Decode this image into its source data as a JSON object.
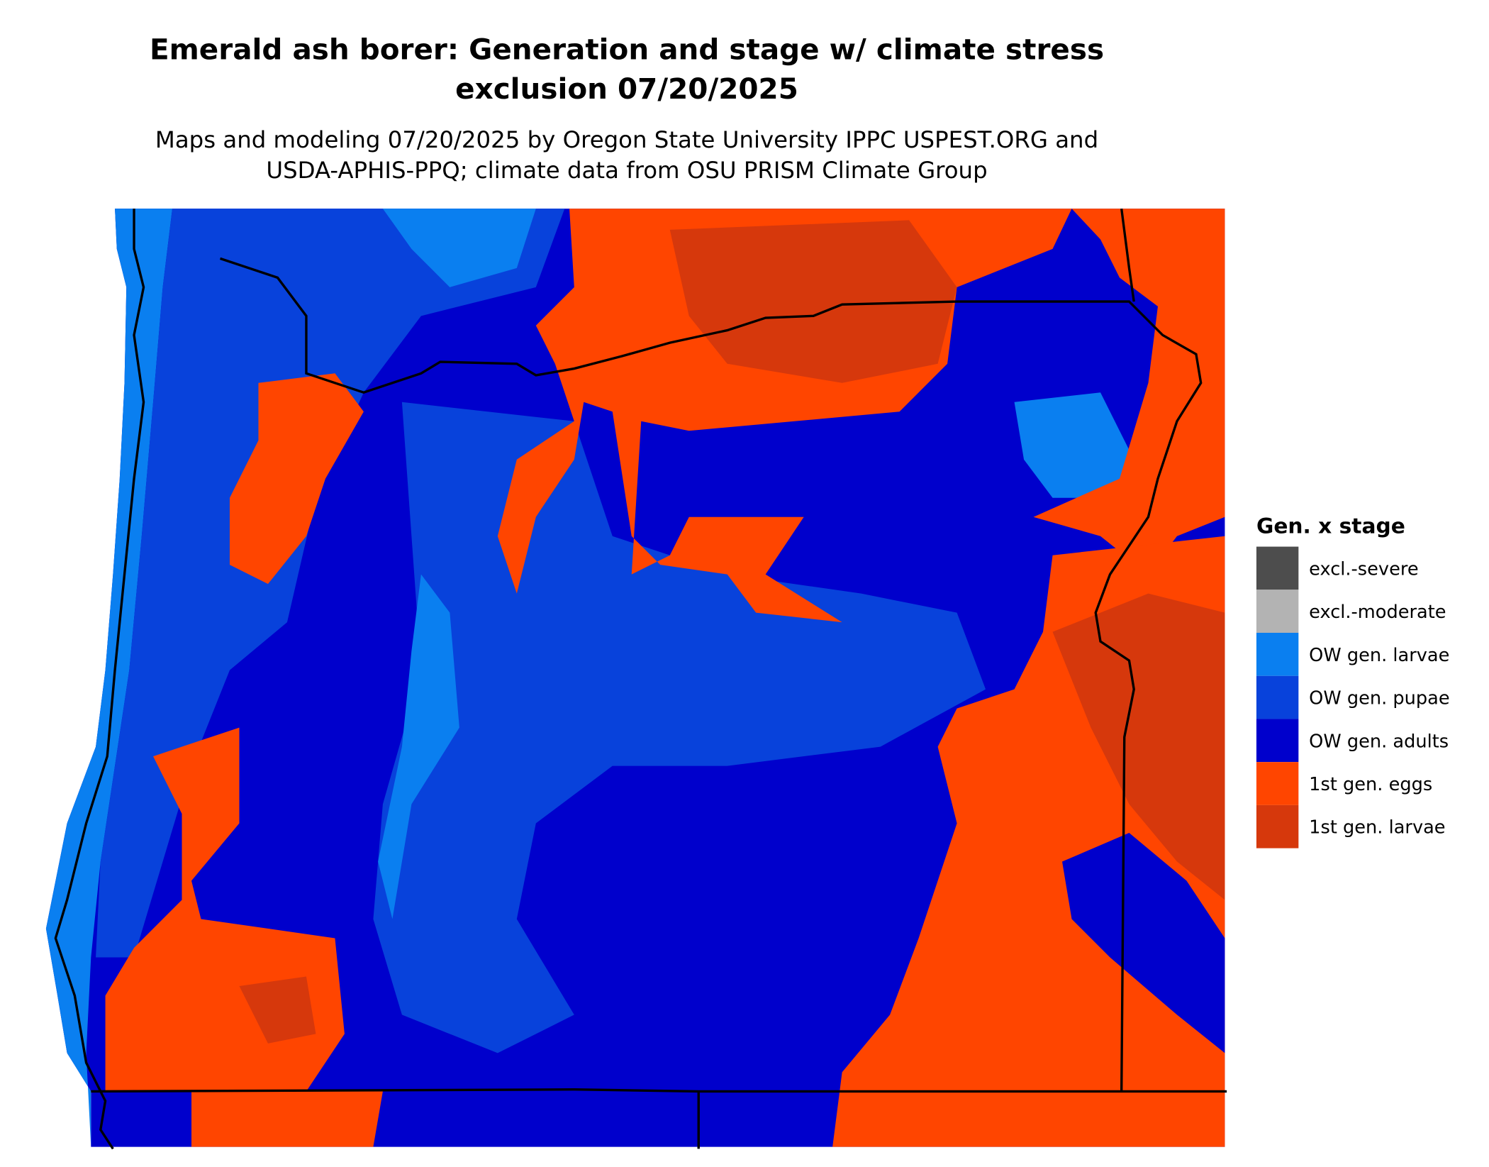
{
  "title": [
    "Emerald ash borer: Generation and stage w/ climate stress",
    "exclusion 07/20/2025"
  ],
  "subtitle": [
    "Maps and modeling 07/20/2025 by Oregon State University IPPC USPEST.ORG and",
    "USDA-APHIS-PPQ; climate data from OSU PRISM Climate Group"
  ],
  "legend": {
    "title": "Gen. x stage",
    "items": [
      {
        "label": "excl.-severe",
        "color": "#4d4d4d"
      },
      {
        "label": "excl.-moderate",
        "color": "#b3b3b3"
      },
      {
        "label": "OW gen. larvae",
        "color": "#0a7ff0"
      },
      {
        "label": "OW gen. pupae",
        "color": "#0842db"
      },
      {
        "label": "OW gen. adults",
        "color": "#0000cc"
      },
      {
        "label": "1st gen. eggs",
        "color": "#ff4500"
      },
      {
        "label": "1st gen. larvae",
        "color": "#d6380c"
      }
    ]
  }
}
